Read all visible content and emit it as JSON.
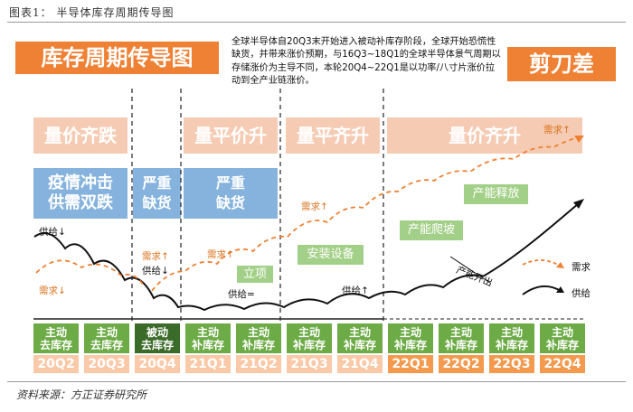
{
  "figure_label": "图表1：  半导体库存周期传导图",
  "main_title": "库存周期传导图",
  "description": "全球半导体自20Q3末开始进入被动补库存阶段，全球开始恐慌性缺货，并带来涨价预期，与16Q3~18Q1的全球半导体景气周期以存储涨价为主导不同，本轮20Q4~22Q1是以功率/八寸片涨价拉动到全产业链涨价。",
  "scissor_label": "剪刀差",
  "phases": [
    {
      "label": "量价齐跌"
    },
    {
      "label": "量平价升"
    },
    {
      "label": "量平齐升"
    },
    {
      "label": "量价齐升"
    }
  ],
  "blue_boxes": [
    {
      "line1": "疫情冲击",
      "line2": "供需双跌"
    },
    {
      "line1": "严重",
      "line2": "缺货"
    },
    {
      "line1": "严重",
      "line2": "缺货"
    }
  ],
  "green_boxes": [
    {
      "label": "立项"
    },
    {
      "label": "安装设备"
    },
    {
      "label": "产能爬坡"
    },
    {
      "label": "产能释放"
    }
  ],
  "annotations": {
    "supply_down": "供给↓",
    "demand_down": "需求↓",
    "demand_up_1": "需求↑",
    "supply_down_2": "供给↓",
    "demand_up_2": "需求↑",
    "supply_eq": "供给=",
    "demand_up_3": "需求↑",
    "supply_up": "供给↑",
    "demand_up_4": "需求↑",
    "capacity_out": "产能开出"
  },
  "legend": {
    "demand": "需求",
    "supply": "供给"
  },
  "colors": {
    "orange": "#ef8134",
    "phase_pink": "#f6cbb3",
    "blue": "#86b3dd",
    "green": "#a3d088",
    "stage_green": "#6cab45",
    "stage_dark": "#3b6b29"
  },
  "stages": [
    {
      "line1": "主动",
      "line2": "去库存",
      "dark": false
    },
    {
      "line1": "主动",
      "line2": "去库存",
      "dark": false
    },
    {
      "line1": "被动",
      "line2": "去库存",
      "dark": true
    },
    {
      "line1": "主动",
      "line2": "补库存",
      "dark": false
    },
    {
      "line1": "主动",
      "line2": "补库存",
      "dark": false
    },
    {
      "line1": "主动",
      "line2": "补库存",
      "dark": false
    },
    {
      "line1": "主动",
      "line2": "补库存",
      "dark": false
    },
    {
      "line1": "主动",
      "line2": "补库存",
      "dark": false
    },
    {
      "line1": "主动",
      "line2": "补库存",
      "dark": false
    },
    {
      "line1": "主动",
      "line2": "补库存",
      "dark": false
    },
    {
      "line1": "主动",
      "line2": "补库存",
      "dark": false
    }
  ],
  "quarters": [
    {
      "label": "20Q2",
      "hot": false
    },
    {
      "label": "20Q3",
      "hot": false
    },
    {
      "label": "20Q4",
      "hot": false
    },
    {
      "label": "21Q1",
      "hot": false
    },
    {
      "label": "21Q2",
      "hot": false
    },
    {
      "label": "21Q3",
      "hot": false
    },
    {
      "label": "21Q4",
      "hot": false
    },
    {
      "label": "22Q1",
      "hot": true
    },
    {
      "label": "22Q2",
      "hot": true
    },
    {
      "label": "22Q3",
      "hot": true
    },
    {
      "label": "22Q4",
      "hot": true
    }
  ],
  "source": "资料来源：方正证券研究所"
}
